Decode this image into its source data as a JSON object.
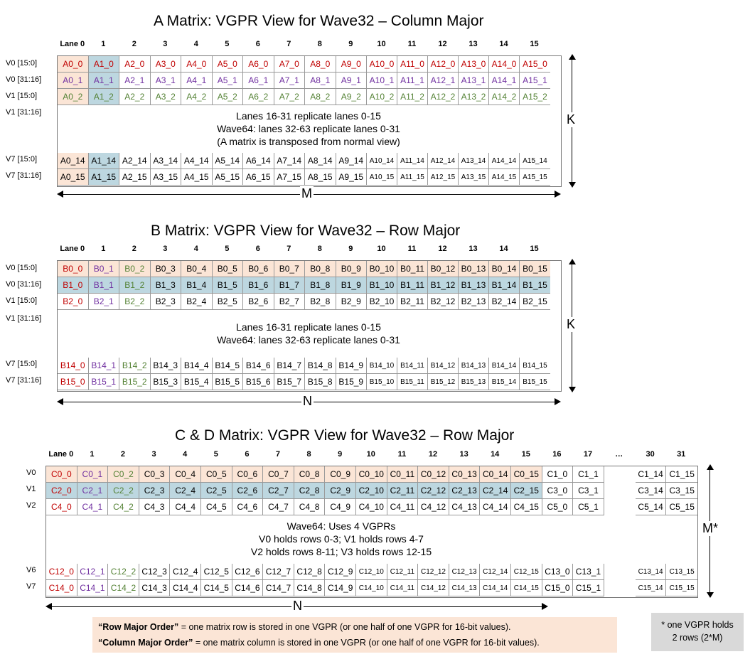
{
  "matrix_a": {
    "title": "A Matrix: VGPR View for Wave32 – Column Major",
    "lane_headers": [
      "Lane 0",
      "1",
      "2",
      "3",
      "4",
      "5",
      "6",
      "7",
      "8",
      "9",
      "10",
      "11",
      "12",
      "13",
      "14",
      "15"
    ],
    "row_labels": [
      "V0 [15:0]",
      "V0 [31:16]",
      "V1 [15:0]",
      "V1 [31:16]",
      "V7 [15:0]",
      "V7 [31:16]"
    ],
    "top_rows": [
      [
        "A0_0",
        "A1_0",
        "A2_0",
        "A3_0",
        "A4_0",
        "A5_0",
        "A6_0",
        "A7_0",
        "A8_0",
        "A9_0",
        "A10_0",
        "A11_0",
        "A12_0",
        "A13_0",
        "A14_0",
        "A15_0"
      ],
      [
        "A0_1",
        "A1_1",
        "A2_1",
        "A3_1",
        "A4_1",
        "A5_1",
        "A6_1",
        "A7_1",
        "A8_1",
        "A9_1",
        "A10_1",
        "A11_1",
        "A12_1",
        "A13_1",
        "A14_1",
        "A15_1"
      ],
      [
        "A0_2",
        "A1_2",
        "A2_2",
        "A3_2",
        "A4_2",
        "A5_2",
        "A6_2",
        "A7_2",
        "A8_2",
        "A9_2",
        "A10_2",
        "A11_2",
        "A12_2",
        "A13_2",
        "A14_2",
        "A15_2"
      ]
    ],
    "bottom_rows": [
      [
        "A0_14",
        "A1_14",
        "A2_14",
        "A3_14",
        "A4_14",
        "A5_14",
        "A6_14",
        "A7_14",
        "A8_14",
        "A9_14",
        "A10_14",
        "A11_14",
        "A12_14",
        "A13_14",
        "A14_14",
        "A15_14"
      ],
      [
        "A0_15",
        "A1_15",
        "A2_15",
        "A3_15",
        "A4_15",
        "A5_15",
        "A6_15",
        "A7_15",
        "A8_15",
        "A9_15",
        "A10_15",
        "A11_15",
        "A12_15",
        "A13_15",
        "A14_15",
        "A15_15"
      ]
    ],
    "note": [
      "Lanes 16-31 replicate lanes 0-15",
      "Wave64: lanes 32-63 replicate lanes 0-31",
      "(A matrix is transposed from normal view)"
    ],
    "axis_vertical": "K",
    "axis_horizontal": "M"
  },
  "matrix_b": {
    "title": "B Matrix: VGPR View for Wave32 – Row Major",
    "lane_headers": [
      "Lane 0",
      "1",
      "2",
      "3",
      "4",
      "5",
      "6",
      "7",
      "8",
      "9",
      "10",
      "11",
      "12",
      "13",
      "14",
      "15"
    ],
    "row_labels": [
      "V0 [15:0]",
      "V0 [31:16]",
      "V1 [15:0]",
      "V1 [31:16]",
      "V7 [15:0]",
      "V7 [31:16]"
    ],
    "top_rows": [
      [
        "B0_0",
        "B0_1",
        "B0_2",
        "B0_3",
        "B0_4",
        "B0_5",
        "B0_6",
        "B0_7",
        "B0_8",
        "B0_9",
        "B0_10",
        "B0_11",
        "B0_12",
        "B0_13",
        "B0_14",
        "B0_15"
      ],
      [
        "B1_0",
        "B1_1",
        "B1_2",
        "B1_3",
        "B1_4",
        "B1_5",
        "B1_6",
        "B1_7",
        "B1_8",
        "B1_9",
        "B1_10",
        "B1_11",
        "B1_12",
        "B1_13",
        "B1_14",
        "B1_15"
      ],
      [
        "B2_0",
        "B2_1",
        "B2_2",
        "B2_3",
        "B2_4",
        "B2_5",
        "B2_6",
        "B2_7",
        "B2_8",
        "B2_9",
        "B2_10",
        "B2_11",
        "B2_12",
        "B2_13",
        "B2_14",
        "B2_15"
      ]
    ],
    "bottom_rows": [
      [
        "B14_0",
        "B14_1",
        "B14_2",
        "B14_3",
        "B14_4",
        "B14_5",
        "B14_6",
        "B14_7",
        "B14_8",
        "B14_9",
        "B14_10",
        "B14_11",
        "B14_12",
        "B14_13",
        "B14_14",
        "B14_15"
      ],
      [
        "B15_0",
        "B15_1",
        "B15_2",
        "B15_3",
        "B15_4",
        "B15_5",
        "B15_6",
        "B15_7",
        "B15_8",
        "B15_9",
        "B15_10",
        "B15_11",
        "B15_12",
        "B15_13",
        "B15_14",
        "B15_15"
      ]
    ],
    "note": [
      "Lanes 16-31 replicate lanes 0-15",
      "Wave64: lanes 32-63 replicate lanes 0-31"
    ],
    "axis_vertical": "K",
    "axis_horizontal": "N"
  },
  "matrix_c": {
    "title": "C & D Matrix: VGPR View for Wave32 – Row Major",
    "lane_headers": [
      "Lane 0",
      "1",
      "2",
      "3",
      "4",
      "5",
      "6",
      "7",
      "8",
      "9",
      "10",
      "11",
      "12",
      "13",
      "14",
      "15",
      "16",
      "17",
      "…",
      "30",
      "31"
    ],
    "row_labels": [
      "V0",
      "V1",
      "V2",
      "V6",
      "V7"
    ],
    "top_rows": [
      [
        "C0_0",
        "C0_1",
        "C0_2",
        "C0_3",
        "C0_4",
        "C0_5",
        "C0_6",
        "C0_7",
        "C0_8",
        "C0_9",
        "C0_10",
        "C0_11",
        "C0_12",
        "C0_13",
        "C0_14",
        "C0_15",
        "C1_0",
        "C1_1",
        "",
        "C1_14",
        "C1_15"
      ],
      [
        "C2_0",
        "C2_1",
        "C2_2",
        "C2_3",
        "C2_4",
        "C2_5",
        "C2_6",
        "C2_7",
        "C2_8",
        "C2_9",
        "C2_10",
        "C2_11",
        "C2_12",
        "C2_13",
        "C2_14",
        "C2_15",
        "C3_0",
        "C3_1",
        "",
        "C3_14",
        "C3_15"
      ],
      [
        "C4_0",
        "C4_1",
        "C4_2",
        "C4_3",
        "C4_4",
        "C4_5",
        "C4_6",
        "C4_7",
        "C4_8",
        "C4_9",
        "C4_10",
        "C4_11",
        "C4_12",
        "C4_13",
        "C4_14",
        "C4_15",
        "C5_0",
        "C5_1",
        "",
        "C5_14",
        "C5_15"
      ]
    ],
    "bottom_rows": [
      [
        "C12_0",
        "C12_1",
        "C12_2",
        "C12_3",
        "C12_4",
        "C12_5",
        "C12_6",
        "C12_7",
        "C12_8",
        "C12_9",
        "C12_10",
        "C12_11",
        "C12_12",
        "C12_13",
        "C12_14",
        "C12_15",
        "C13_0",
        "C13_1",
        "",
        "C13_14",
        "C13_15"
      ],
      [
        "C14_0",
        "C14_1",
        "C14_2",
        "C14_3",
        "C14_4",
        "C14_5",
        "C14_6",
        "C14_7",
        "C14_8",
        "C14_9",
        "C14_10",
        "C14_11",
        "C14_12",
        "C14_13",
        "C14_14",
        "C14_15",
        "C15_0",
        "C15_1",
        "",
        "C15_14",
        "C15_15"
      ]
    ],
    "note": [
      "Wave64: Uses 4 VGPRs",
      "V0 holds rows 0-3;  V1 holds rows 4-7",
      "V2 holds rows 8-11;  V3 holds rows 12-15"
    ],
    "axis_vertical": "M*",
    "axis_horizontal": "N"
  },
  "legend": {
    "row_major_term": "“Row Major Order”",
    "row_major_text": " = one matrix row is stored in one VGPR (or one half of one VGPR for 16-bit values).",
    "col_major_term": "“Column Major Order”",
    "col_major_text": " = one matrix column is stored in one VGPR (or one half of one VGPR for 16-bit values)."
  },
  "footnote": [
    "* one VGPR holds",
    "2 rows (2*M)"
  ],
  "colors": {
    "peach": "#fbe5d6",
    "blue": "#bdd7e0",
    "red": "#c00000",
    "purple": "#7030a0",
    "green": "#548235",
    "black": "#000000"
  }
}
